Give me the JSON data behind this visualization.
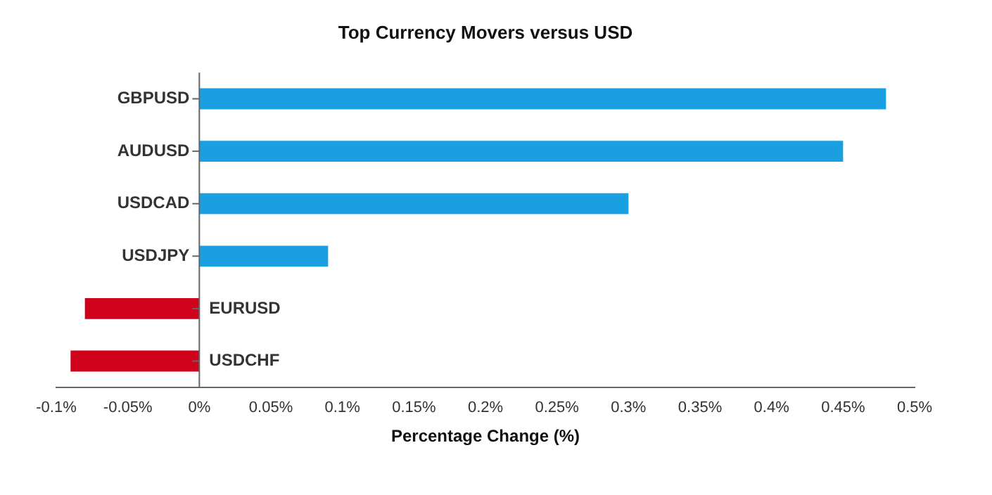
{
  "chart_data": {
    "type": "bar",
    "orientation": "horizontal",
    "title": "Top Currency Movers versus USD",
    "xlabel": "Percentage Change (%)",
    "categories": [
      "GBPUSD",
      "AUDUSD",
      "USDCAD",
      "USDJPY",
      "EURUSD",
      "USDCHF"
    ],
    "values": [
      0.48,
      0.45,
      0.3,
      0.09,
      -0.08,
      -0.09
    ],
    "colors": [
      "#1a9fe3",
      "#1a9fe3",
      "#1a9fe3",
      "#1a9fe3",
      "#d0021b",
      "#d0021b"
    ],
    "xlim": [
      -0.1,
      0.5
    ],
    "xticks": [
      {
        "value": -0.1,
        "label": "-0.1%"
      },
      {
        "value": -0.05,
        "label": "-0.05%"
      },
      {
        "value": 0,
        "label": "0%"
      },
      {
        "value": 0.05,
        "label": "0.05%"
      },
      {
        "value": 0.1,
        "label": "0.1%"
      },
      {
        "value": 0.15,
        "label": "0.15%"
      },
      {
        "value": 0.2,
        "label": "0.2%"
      },
      {
        "value": 0.25,
        "label": "0.25%"
      },
      {
        "value": 0.3,
        "label": "0.3%"
      },
      {
        "value": 0.35,
        "label": "0.35%"
      },
      {
        "value": 0.4,
        "label": "0.4%"
      },
      {
        "value": 0.45,
        "label": "0.45%"
      },
      {
        "value": 0.5,
        "label": "0.5%"
      }
    ],
    "grid": false,
    "legend": false
  }
}
